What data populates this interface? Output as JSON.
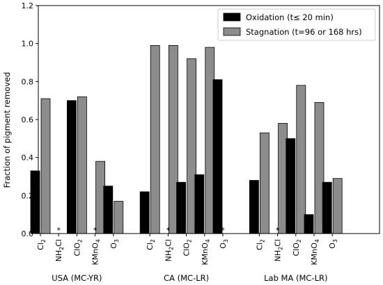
{
  "chart_data": {
    "type": "bar",
    "ylabel": "Fraction of pigment removed",
    "ylim": [
      0,
      1.2
    ],
    "yticks": [
      "0.0",
      "0.2",
      "0.4",
      "0.6",
      "0.8",
      "1.0",
      "1.2"
    ],
    "grid": false,
    "legend_position": "top-right",
    "series": [
      {
        "name": "Oxidation (t≤ 20 min)",
        "color": "#000000"
      },
      {
        "name": "Stagnation (t=96 or 168 hrs)",
        "color": "#8c8c8c"
      }
    ],
    "not_tested_marker": "*",
    "groups": [
      {
        "label": "USA (MC-YR)",
        "oxidants": [
          {
            "name": "Cl",
            "sub": "2",
            "suffix": "",
            "oxidation": 0.33,
            "stagnation": 0.71,
            "missing": false
          },
          {
            "name": "NH",
            "sub": "2",
            "suffix": "Cl",
            "oxidation": null,
            "stagnation": null,
            "missing": true
          },
          {
            "name": "ClO",
            "sub": "2",
            "suffix": "",
            "oxidation": 0.7,
            "stagnation": 0.72,
            "missing": false
          },
          {
            "name": "KMnO",
            "sub": "4",
            "suffix": "",
            "oxidation": null,
            "stagnation": 0.38,
            "missing": true
          },
          {
            "name": "O",
            "sub": "3",
            "suffix": "",
            "oxidation": 0.25,
            "stagnation": 0.17,
            "missing": false
          }
        ]
      },
      {
        "label": "CA (MC-LR)",
        "oxidants": [
          {
            "name": "Cl",
            "sub": "2",
            "suffix": "",
            "oxidation": 0.22,
            "stagnation": 0.99,
            "missing": false
          },
          {
            "name": "NH",
            "sub": "2",
            "suffix": "Cl",
            "oxidation": null,
            "stagnation": 0.99,
            "missing": true
          },
          {
            "name": "ClO",
            "sub": "2",
            "suffix": "",
            "oxidation": 0.27,
            "stagnation": 0.92,
            "missing": false
          },
          {
            "name": "KMnO",
            "sub": "4",
            "suffix": "",
            "oxidation": 0.31,
            "stagnation": 0.98,
            "missing": false
          },
          {
            "name": "O",
            "sub": "3",
            "suffix": "",
            "oxidation": 0.81,
            "stagnation": null,
            "missing": true
          }
        ]
      },
      {
        "label": "Lab MA (MC-LR)",
        "oxidants": [
          {
            "name": "Cl",
            "sub": "2",
            "suffix": "",
            "oxidation": 0.28,
            "stagnation": 0.53,
            "missing": false
          },
          {
            "name": "NH",
            "sub": "2",
            "suffix": "Cl",
            "oxidation": null,
            "stagnation": 0.58,
            "missing": true
          },
          {
            "name": "ClO",
            "sub": "2",
            "suffix": "",
            "oxidation": 0.5,
            "stagnation": 0.78,
            "missing": false
          },
          {
            "name": "KMnO",
            "sub": "4",
            "suffix": "",
            "oxidation": 0.1,
            "stagnation": 0.69,
            "missing": false
          },
          {
            "name": "O",
            "sub": "3",
            "suffix": "",
            "oxidation": 0.27,
            "stagnation": 0.29,
            "missing": false
          }
        ]
      }
    ]
  }
}
